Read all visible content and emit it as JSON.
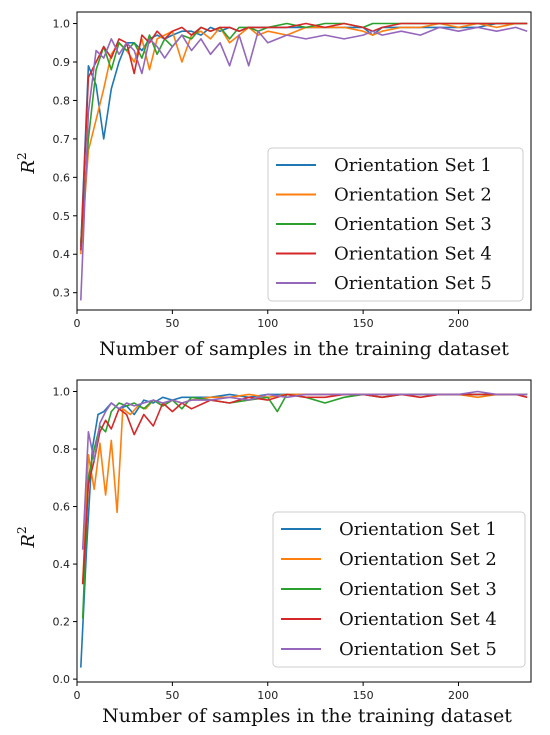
{
  "colors": [
    "#1f77b4",
    "#ff7f0e",
    "#2ca02c",
    "#d62728",
    "#9467bd"
  ],
  "chart_data": [
    {
      "type": "line",
      "xlabel": "Number of samples in the training dataset",
      "ylabel": "R",
      "ylabel_sup": "2",
      "xlim": [
        0,
        238
      ],
      "ylim": [
        0.255,
        1.03
      ],
      "xticks": [
        "0",
        "50",
        "100",
        "150",
        "200"
      ],
      "xtick_values": [
        0,
        50,
        100,
        150,
        200
      ],
      "yticks": [
        "0.3",
        "0.4",
        "0.5",
        "0.6",
        "0.7",
        "0.8",
        "0.9",
        "1.0"
      ],
      "ytick_values": [
        0.3,
        0.4,
        0.5,
        0.6,
        0.7,
        0.8,
        0.9,
        1.0
      ],
      "legend_position": "lower-right",
      "series": [
        {
          "name": "Orientation Set 1",
          "x": [
            2,
            6,
            10,
            14,
            18,
            22,
            26,
            30,
            34,
            38,
            42,
            46,
            50,
            55,
            60,
            65,
            70,
            75,
            80,
            85,
            90,
            95,
            100,
            110,
            120,
            130,
            140,
            150,
            155,
            160,
            170,
            180,
            190,
            200,
            210,
            220,
            230,
            236
          ],
          "y": [
            0.42,
            0.89,
            0.84,
            0.7,
            0.83,
            0.9,
            0.95,
            0.95,
            0.93,
            0.96,
            0.97,
            0.96,
            0.97,
            0.98,
            0.98,
            0.97,
            0.99,
            0.98,
            0.99,
            0.98,
            0.99,
            0.99,
            0.99,
            0.99,
            0.99,
            0.99,
            0.99,
            0.99,
            0.97,
            0.99,
            0.99,
            0.99,
            0.99,
            0.99,
            0.99,
            1.0,
            1.0,
            1.0
          ]
        },
        {
          "name": "Orientation Set 2",
          "x": [
            2,
            6,
            10,
            14,
            18,
            22,
            26,
            30,
            34,
            38,
            42,
            46,
            50,
            55,
            60,
            65,
            70,
            75,
            80,
            85,
            90,
            95,
            100,
            110,
            120,
            130,
            140,
            150,
            155,
            160,
            170,
            180,
            190,
            200,
            210,
            220,
            230,
            236
          ],
          "y": [
            0.4,
            0.67,
            0.75,
            0.83,
            0.92,
            0.95,
            0.93,
            0.9,
            0.96,
            0.88,
            0.96,
            0.97,
            0.98,
            0.9,
            0.97,
            0.98,
            0.96,
            0.99,
            0.95,
            0.97,
            0.99,
            0.97,
            0.98,
            0.97,
            0.99,
            0.99,
            0.99,
            0.98,
            0.97,
            0.98,
            0.99,
            0.99,
            1.0,
            0.99,
            1.0,
            0.99,
            1.0,
            1.0
          ]
        },
        {
          "name": "Orientation Set 3",
          "x": [
            2,
            6,
            10,
            14,
            18,
            22,
            26,
            30,
            34,
            38,
            42,
            46,
            50,
            55,
            60,
            65,
            70,
            75,
            80,
            85,
            90,
            95,
            100,
            110,
            120,
            130,
            140,
            150,
            155,
            160,
            170,
            180,
            190,
            200,
            210,
            220,
            230,
            236
          ],
          "y": [
            0.43,
            0.7,
            0.88,
            0.94,
            0.88,
            0.95,
            0.93,
            0.95,
            0.91,
            0.97,
            0.92,
            0.96,
            0.94,
            0.97,
            0.96,
            0.99,
            0.98,
            0.99,
            0.96,
            0.99,
            0.99,
            0.98,
            0.99,
            1.0,
            0.99,
            1.0,
            1.0,
            0.99,
            1.0,
            1.0,
            1.0,
            1.0,
            1.0,
            1.0,
            1.0,
            1.0,
            1.0,
            1.0
          ]
        },
        {
          "name": "Orientation Set 4",
          "x": [
            2,
            6,
            10,
            14,
            18,
            22,
            26,
            30,
            34,
            38,
            42,
            46,
            50,
            55,
            60,
            65,
            70,
            75,
            80,
            85,
            90,
            95,
            100,
            110,
            120,
            130,
            140,
            150,
            155,
            160,
            170,
            180,
            190,
            200,
            210,
            220,
            230,
            236
          ],
          "y": [
            0.41,
            0.86,
            0.9,
            0.94,
            0.91,
            0.96,
            0.95,
            0.87,
            0.97,
            0.95,
            0.98,
            0.96,
            0.98,
            0.99,
            0.97,
            0.99,
            0.98,
            0.99,
            0.99,
            0.98,
            0.99,
            0.99,
            0.99,
            0.99,
            1.0,
            0.99,
            1.0,
            0.99,
            0.98,
            0.99,
            1.0,
            1.0,
            1.0,
            1.0,
            1.0,
            1.0,
            1.0,
            1.0
          ]
        },
        {
          "name": "Orientation Set 5",
          "x": [
            2,
            6,
            10,
            14,
            18,
            22,
            26,
            30,
            34,
            38,
            42,
            46,
            50,
            55,
            60,
            65,
            70,
            75,
            80,
            85,
            90,
            95,
            100,
            110,
            120,
            130,
            140,
            150,
            155,
            160,
            170,
            180,
            190,
            200,
            210,
            220,
            230,
            236
          ],
          "y": [
            0.28,
            0.77,
            0.93,
            0.91,
            0.96,
            0.92,
            0.95,
            0.93,
            0.87,
            0.96,
            0.94,
            0.91,
            0.94,
            0.97,
            0.93,
            0.96,
            0.92,
            0.95,
            0.89,
            0.97,
            0.89,
            0.98,
            0.95,
            0.97,
            0.96,
            0.97,
            0.96,
            0.97,
            0.98,
            0.97,
            0.98,
            0.97,
            0.99,
            0.98,
            0.99,
            0.98,
            0.99,
            0.98
          ]
        }
      ]
    },
    {
      "type": "line",
      "xlabel": "Number of samples in the training dataset",
      "ylabel": "R",
      "ylabel_sup": "2",
      "xlim": [
        0,
        238
      ],
      "ylim": [
        -0.01,
        1.04
      ],
      "xticks": [
        "0",
        "50",
        "100",
        "150",
        "200"
      ],
      "xtick_values": [
        0,
        50,
        100,
        150,
        200
      ],
      "yticks": [
        "0.0",
        "0.2",
        "0.4",
        "0.6",
        "0.8",
        "1.0"
      ],
      "ytick_values": [
        0.0,
        0.2,
        0.4,
        0.6,
        0.8,
        1.0
      ],
      "legend_position": "lower-right",
      "series": [
        {
          "name": "Orientation Set 1",
          "x": [
            2,
            5,
            8,
            11,
            14,
            18,
            22,
            26,
            30,
            35,
            40,
            45,
            50,
            55,
            60,
            70,
            80,
            90,
            100,
            110,
            120,
            130,
            140,
            150,
            160,
            170,
            180,
            190,
            200,
            210,
            220,
            230,
            236
          ],
          "y": [
            0.04,
            0.45,
            0.8,
            0.92,
            0.93,
            0.96,
            0.94,
            0.95,
            0.92,
            0.97,
            0.96,
            0.98,
            0.97,
            0.98,
            0.98,
            0.98,
            0.99,
            0.98,
            0.99,
            0.99,
            0.99,
            0.99,
            0.99,
            0.99,
            0.99,
            0.99,
            0.99,
            0.99,
            0.99,
            0.99,
            0.99,
            0.99,
            0.99
          ]
        },
        {
          "name": "Orientation Set 2",
          "x": [
            3,
            6,
            9,
            12,
            15,
            18,
            21,
            24,
            28,
            32,
            36,
            40,
            45,
            50,
            55,
            60,
            70,
            80,
            90,
            100,
            110,
            120,
            130,
            140,
            150,
            160,
            170,
            180,
            190,
            200,
            210,
            220,
            230,
            236
          ],
          "y": [
            0.33,
            0.78,
            0.66,
            0.82,
            0.64,
            0.83,
            0.58,
            0.94,
            0.92,
            0.95,
            0.94,
            0.97,
            0.95,
            0.97,
            0.96,
            0.97,
            0.98,
            0.98,
            0.99,
            0.98,
            0.99,
            0.99,
            0.99,
            0.99,
            0.99,
            0.99,
            0.99,
            0.99,
            0.99,
            0.99,
            0.98,
            0.99,
            0.99,
            0.99
          ]
        },
        {
          "name": "Orientation Set 3",
          "x": [
            3,
            6,
            9,
            12,
            15,
            18,
            22,
            26,
            30,
            35,
            40,
            45,
            50,
            55,
            60,
            70,
            80,
            90,
            100,
            105,
            110,
            120,
            130,
            140,
            150,
            160,
            170,
            180,
            190,
            200,
            210,
            220,
            230,
            236
          ],
          "y": [
            0.21,
            0.7,
            0.8,
            0.88,
            0.86,
            0.93,
            0.96,
            0.95,
            0.96,
            0.94,
            0.97,
            0.95,
            0.97,
            0.94,
            0.98,
            0.97,
            0.96,
            0.97,
            0.98,
            0.93,
            0.99,
            0.98,
            0.96,
            0.98,
            0.99,
            0.98,
            0.99,
            0.99,
            0.99,
            0.99,
            0.99,
            0.99,
            0.99,
            0.99
          ]
        },
        {
          "name": "Orientation Set 4",
          "x": [
            3,
            6,
            9,
            12,
            15,
            18,
            22,
            26,
            30,
            35,
            40,
            45,
            50,
            55,
            60,
            70,
            80,
            90,
            100,
            110,
            120,
            130,
            140,
            150,
            160,
            170,
            180,
            190,
            200,
            210,
            220,
            230,
            236
          ],
          "y": [
            0.33,
            0.68,
            0.76,
            0.86,
            0.9,
            0.87,
            0.94,
            0.92,
            0.85,
            0.92,
            0.88,
            0.96,
            0.93,
            0.96,
            0.94,
            0.97,
            0.96,
            0.98,
            0.97,
            0.99,
            0.98,
            0.98,
            0.99,
            0.99,
            0.98,
            0.99,
            0.98,
            0.99,
            0.99,
            0.99,
            0.99,
            0.99,
            0.98
          ]
        },
        {
          "name": "Orientation Set 5",
          "x": [
            3,
            6,
            9,
            12,
            15,
            18,
            22,
            26,
            30,
            35,
            40,
            45,
            50,
            55,
            60,
            70,
            80,
            90,
            100,
            110,
            120,
            130,
            140,
            150,
            160,
            170,
            180,
            190,
            200,
            210,
            220,
            230,
            236
          ],
          "y": [
            0.45,
            0.86,
            0.76,
            0.89,
            0.93,
            0.96,
            0.94,
            0.96,
            0.95,
            0.96,
            0.97,
            0.96,
            0.97,
            0.96,
            0.97,
            0.97,
            0.98,
            0.97,
            0.99,
            0.98,
            0.99,
            0.99,
            0.99,
            0.99,
            0.99,
            0.99,
            0.99,
            0.99,
            0.99,
            1.0,
            0.99,
            0.99,
            0.99
          ]
        }
      ]
    }
  ]
}
